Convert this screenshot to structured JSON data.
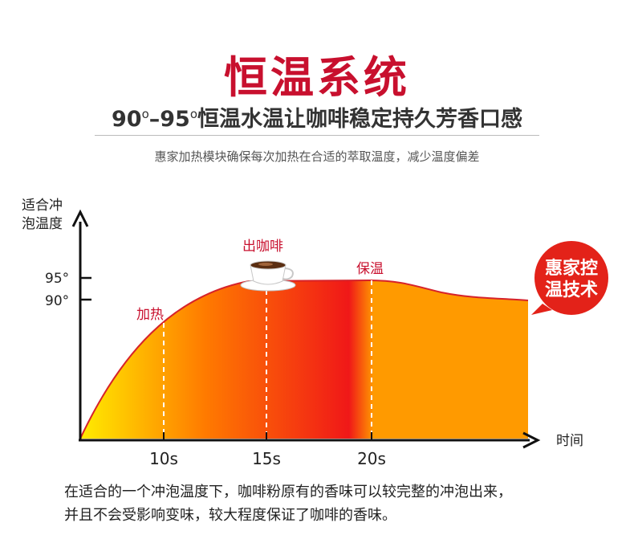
{
  "header": {
    "title": "恒温系统",
    "subtitle": {
      "low_value": "90",
      "separator": "–",
      "high_value": "95",
      "degree_mark": "o",
      "text": "恒温水温让咖啡稳定持久芳香口感"
    },
    "description": "惠家加热模块确保每次加热在合适的萃取温度，减少温度偏差"
  },
  "chart_data": {
    "type": "area",
    "ylabel": [
      "适合冲",
      "泡温度"
    ],
    "xlabel": "时间",
    "y_ticks": [
      "95°",
      "90°"
    ],
    "x_ticks": [
      "10s",
      "15s",
      "20s"
    ],
    "annotations": {
      "heating": "加热",
      "pour_coffee": "出咖啡",
      "keep_warm": "保温"
    },
    "badge": [
      "惠家控",
      "温技术"
    ],
    "colors": {
      "curve": "#d6222a",
      "start_fill": "#ffec00",
      "mid_fill": "#ff7a00",
      "peak_fill": "#f01818",
      "end_fill": "#ff9a00",
      "badge": "#e32219",
      "label_red": "#c8102e"
    }
  },
  "footer": {
    "lines": [
      "在适合的一个冲泡温度下，咖啡粉原有的香味可以较完整的冲泡出来，",
      "并且不会受影响变味，较大程度保证了咖啡的香味。"
    ]
  }
}
